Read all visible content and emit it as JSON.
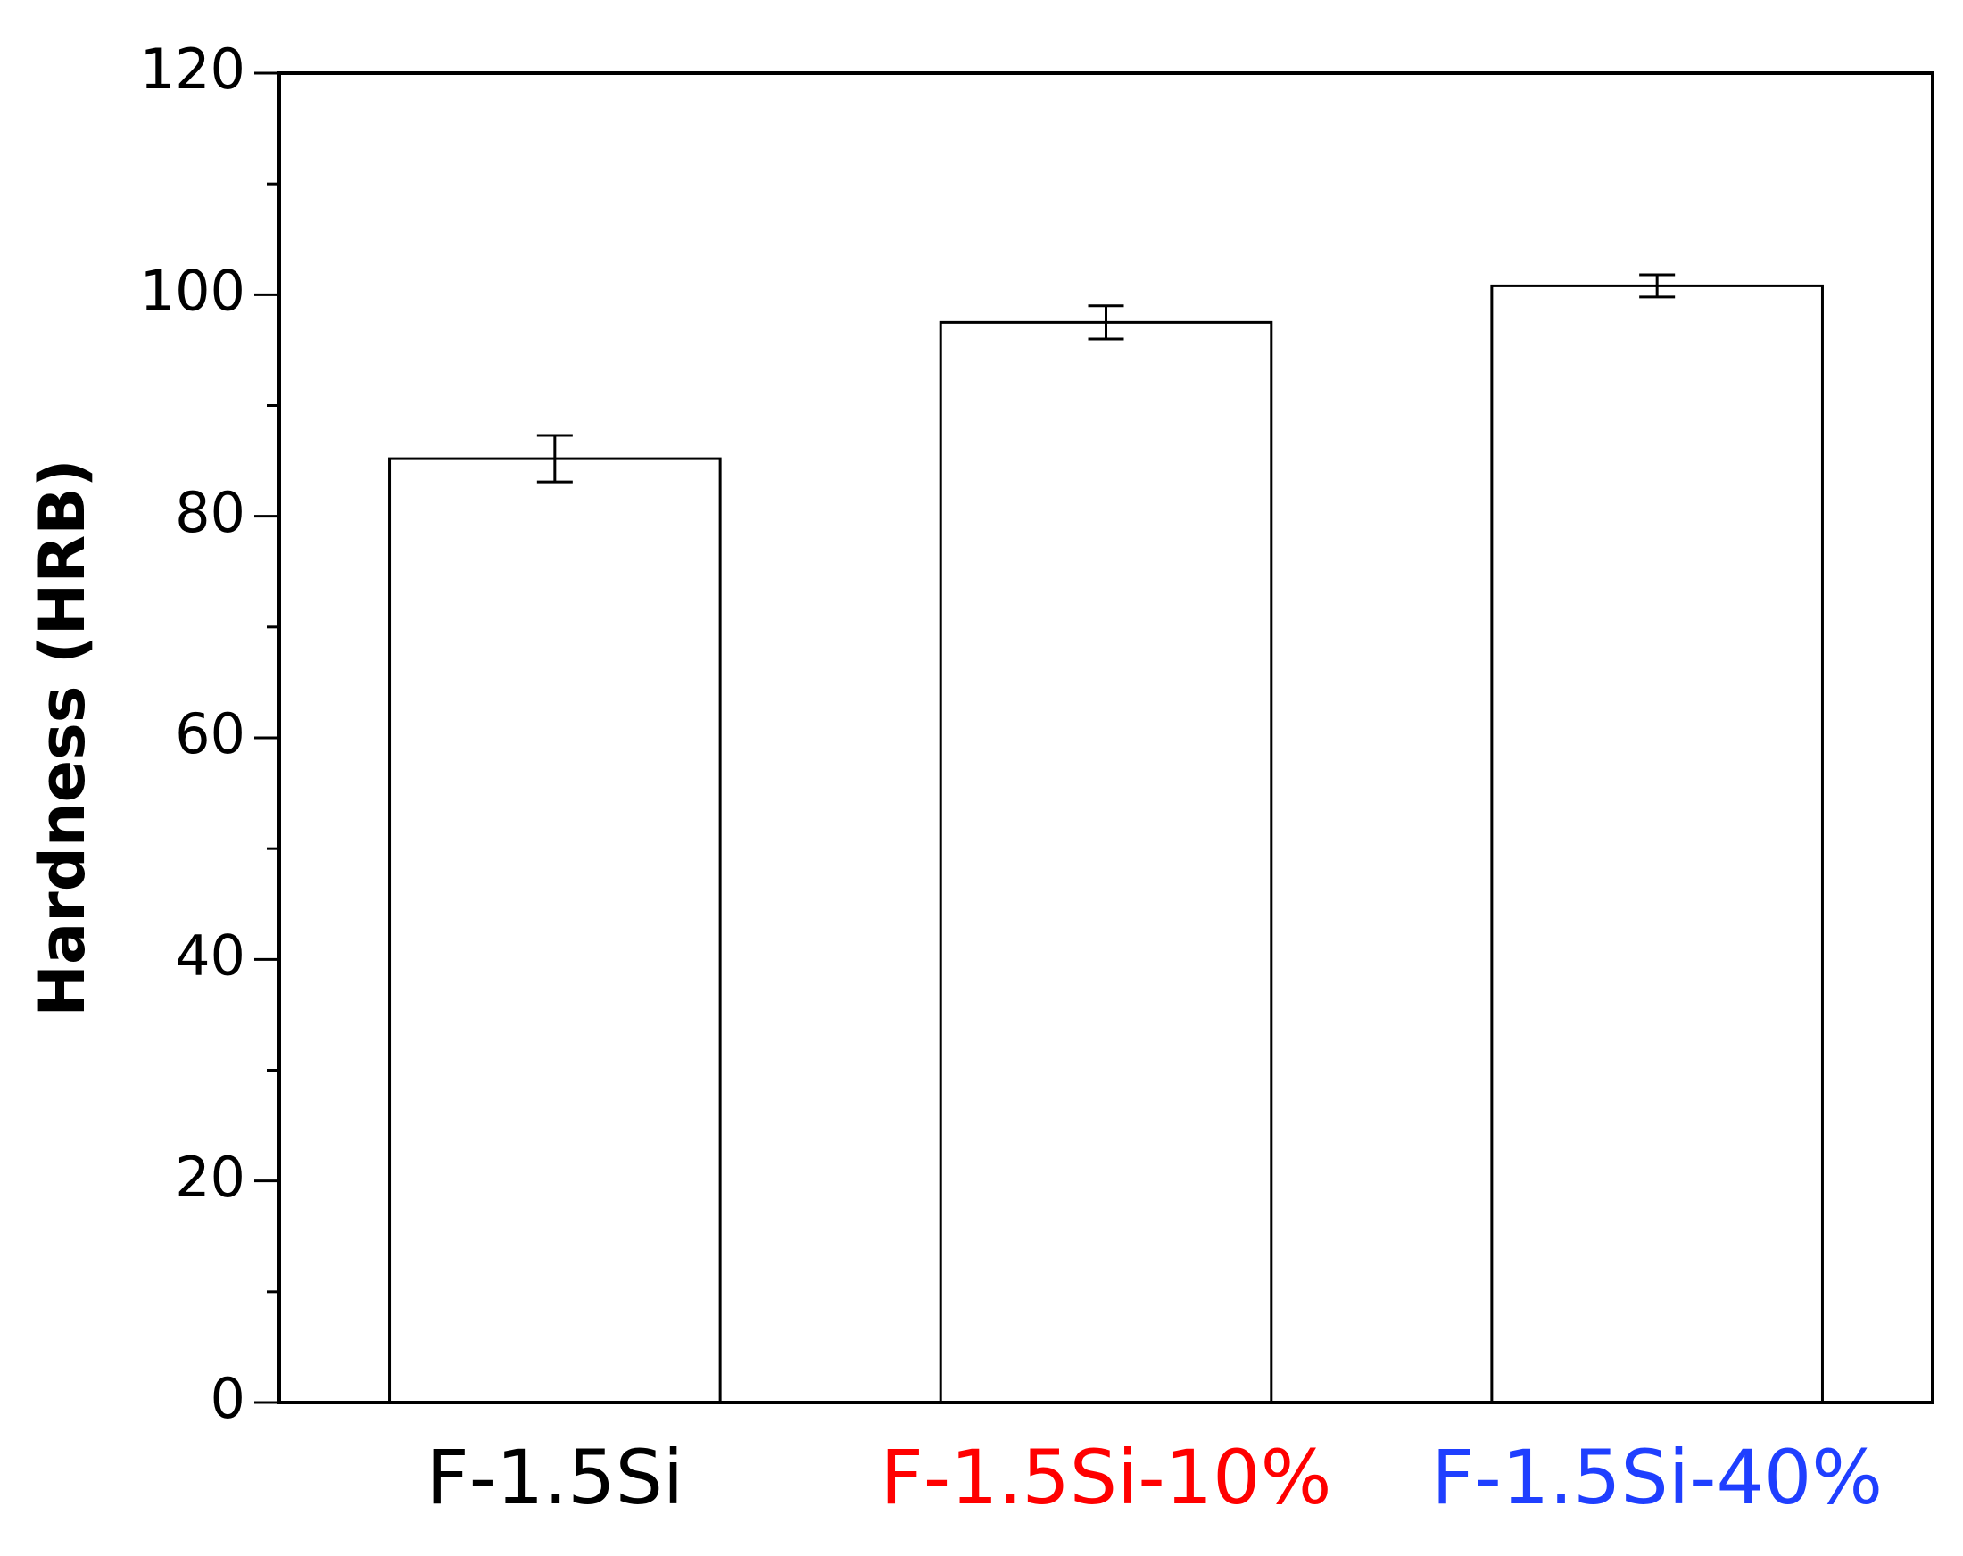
{
  "chart_data": {
    "type": "bar",
    "y_label": "Hardness (HRB)",
    "categories": [
      "F-1.5Si",
      "F-1.5Si-10%",
      "F-1.5Si-40%"
    ],
    "category_colors": [
      "#000000",
      "#ff0000",
      "#1f3fff"
    ],
    "values": [
      85.2,
      97.5,
      100.8
    ],
    "errors": [
      2.1,
      1.5,
      1.0
    ],
    "color": "#ffffff",
    "ylim": [
      0,
      120
    ],
    "yticks": [
      0,
      20,
      40,
      60,
      80,
      100,
      120
    ],
    "yminor_ticks": [
      10,
      30,
      50,
      70,
      90,
      110
    ],
    "grid": false
  }
}
